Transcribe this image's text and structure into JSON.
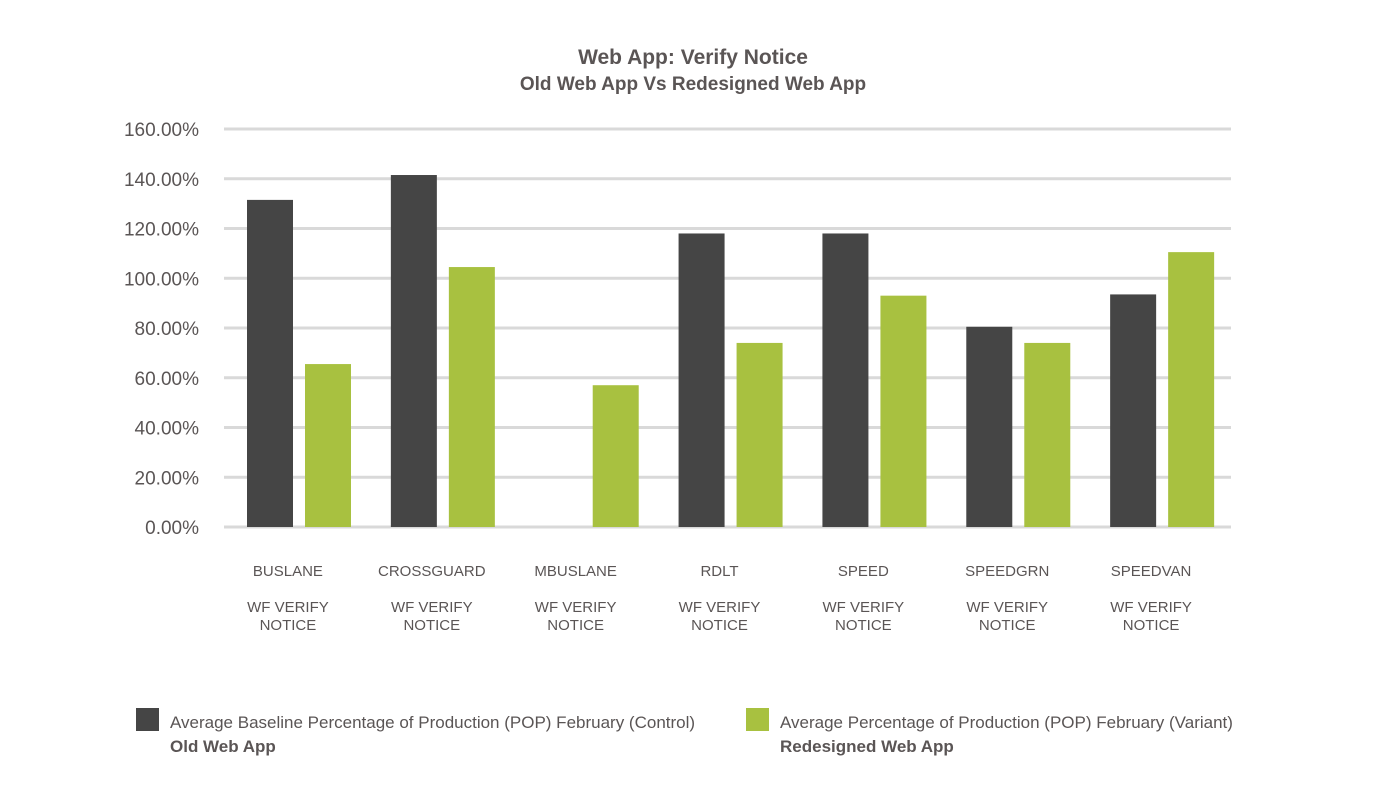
{
  "title": "Web App: Verify Notice",
  "subtitle": "Old Web App Vs Redesigned Web App",
  "colors": {
    "control": "#454545",
    "variant": "#a8c140",
    "grid": "#d9d9d9",
    "text": "#5a5555"
  },
  "chart_data": {
    "type": "bar",
    "title": "Web App: Verify Notice",
    "subtitle": "Old Web App Vs Redesigned Web App",
    "xlabel": "",
    "ylabel": "",
    "ylim": [
      0,
      160
    ],
    "yticks": [
      "0.00%",
      "20.00%",
      "40.00%",
      "60.00%",
      "80.00%",
      "100.00%",
      "120.00%",
      "140.00%",
      "160.00%"
    ],
    "grid": true,
    "legend_position": "bottom",
    "categories": [
      {
        "name": "BUSLANE",
        "sub1": "WF VERIFY",
        "sub2": "NOTICE"
      },
      {
        "name": "CROSSGUARD",
        "sub1": "WF VERIFY",
        "sub2": "NOTICE"
      },
      {
        "name": "MBUSLANE",
        "sub1": "WF VERIFY",
        "sub2": "NOTICE"
      },
      {
        "name": "RDLT",
        "sub1": "WF VERIFY",
        "sub2": "NOTICE"
      },
      {
        "name": "SPEED",
        "sub1": "WF VERIFY",
        "sub2": "NOTICE"
      },
      {
        "name": "SPEEDGRN",
        "sub1": "WF VERIFY",
        "sub2": "NOTICE"
      },
      {
        "name": "SPEEDVAN",
        "sub1": "WF VERIFY",
        "sub2": "NOTICE"
      }
    ],
    "series": [
      {
        "name": "Average Baseline Percentage of Production (POP) February (Control)",
        "label": "Old Web App",
        "values": [
          131.5,
          141.5,
          null,
          118.0,
          118.0,
          80.5,
          93.5
        ]
      },
      {
        "name": "Average Percentage of Production (POP) February (Variant)",
        "label": "Redesigned Web App",
        "values": [
          65.5,
          104.5,
          57.0,
          74.0,
          93.0,
          74.0,
          110.5
        ]
      }
    ]
  }
}
